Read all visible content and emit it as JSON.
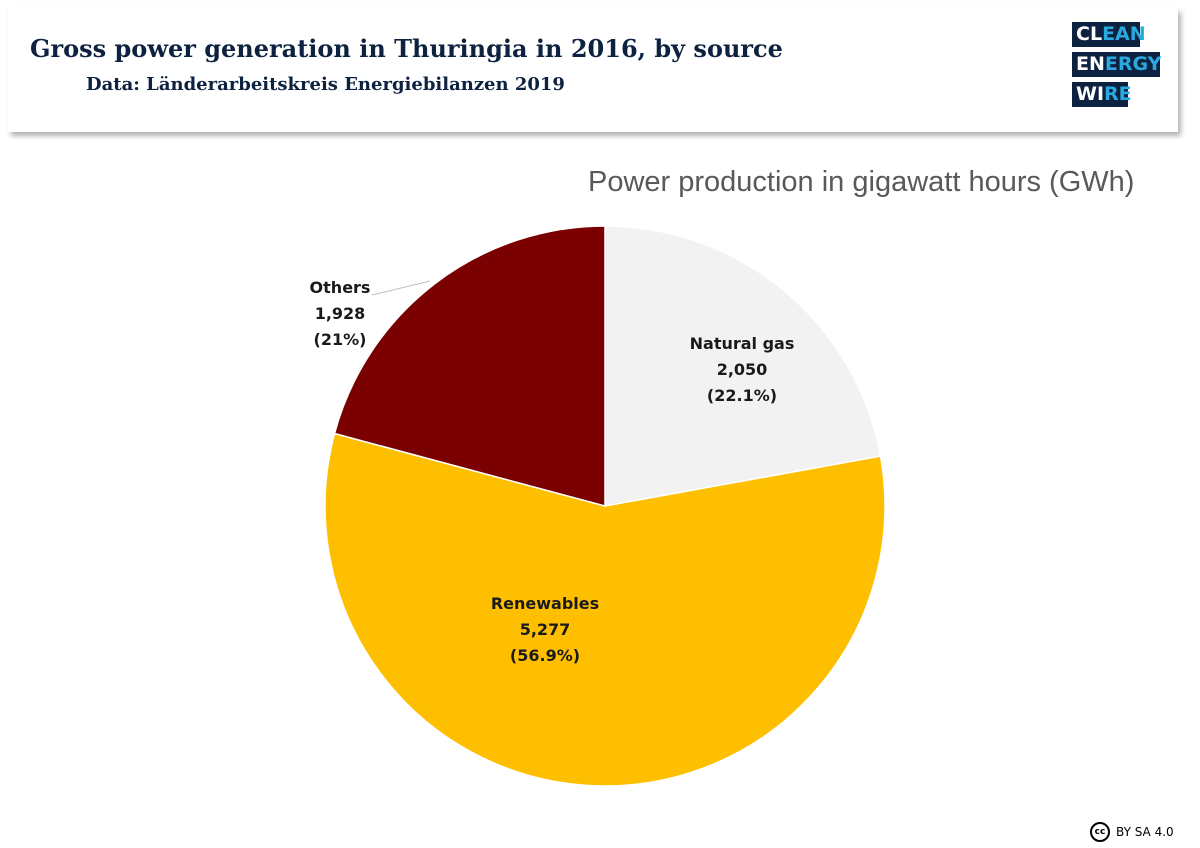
{
  "header": {
    "title": "Gross power generation in Thuringia in 2016, by source",
    "subtitle": "Data: Länderarbeitskreis Energiebilanzen 2019"
  },
  "logo": {
    "line1_a": "CL",
    "line1_b": "EAN",
    "line2_a": "EN",
    "line2_b": "ERGY",
    "line3_a": "WI",
    "line3_b": "RE",
    "colors": {
      "dark": "#0d2240",
      "accent": "#2aa9df"
    }
  },
  "chart_data": {
    "type": "pie",
    "subtitle": "Power production in gigawatt hours (GWh)",
    "start_angle_deg": 0,
    "direction": "clockwise",
    "slices": [
      {
        "name": "Natural gas",
        "value": 2050,
        "value_label": "2,050",
        "percent_label": "(22.1%)",
        "color": "#f2f2f2"
      },
      {
        "name": "Renewables",
        "value": 5277,
        "value_label": "5,277",
        "percent_label": "(56.9%)",
        "color": "#fdbf00"
      },
      {
        "name": "Others",
        "value": 1928,
        "value_label": "1,928",
        "percent_label": "(21%)",
        "color": "#7b0000"
      }
    ]
  },
  "license": {
    "icon": "cc-icon",
    "icon_text": "cc",
    "text": "BY SA 4.0"
  }
}
